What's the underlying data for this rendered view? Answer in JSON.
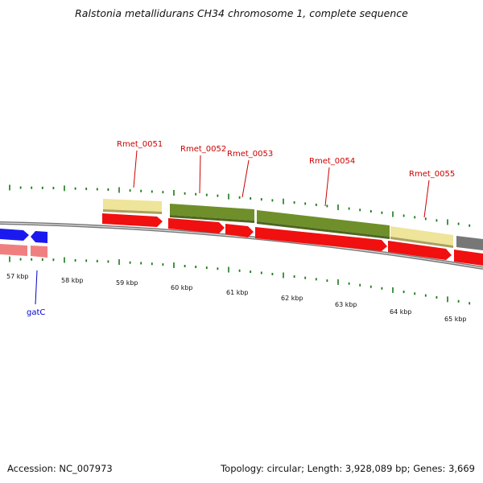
{
  "title": "Ralstonia metallidurans CH34 chromosome 1, complete sequence",
  "footer": {
    "accession": "Accession: NC_007973",
    "summary": "Topology: circular; Length: 3,928,089 bp; Genes: 3,669"
  },
  "colors": {
    "cds_red": "#f01010",
    "cds_pink": "#f08080",
    "pale_yellow": "#eee49a",
    "olive": "#6f8f2a",
    "blue": "#1a1aee",
    "gray": "#777777",
    "tick_green": "#1a7a1a",
    "label_red": "#cc0000",
    "label_blue": "#0000cc"
  },
  "ruler": {
    "labels": [
      "57 kbp",
      "58 kbp",
      "59 kbp",
      "60 kbp",
      "61 kbp",
      "62 kbp",
      "63 kbp",
      "64 kbp",
      "65 kbp"
    ]
  },
  "gene_labels": [
    {
      "text": "Rmet_0051"
    },
    {
      "text": "Rmet_0052"
    },
    {
      "text": "Rmet_0053"
    },
    {
      "text": "Rmet_0054"
    },
    {
      "text": "Rmet_0055"
    },
    {
      "text": "gatC"
    }
  ]
}
